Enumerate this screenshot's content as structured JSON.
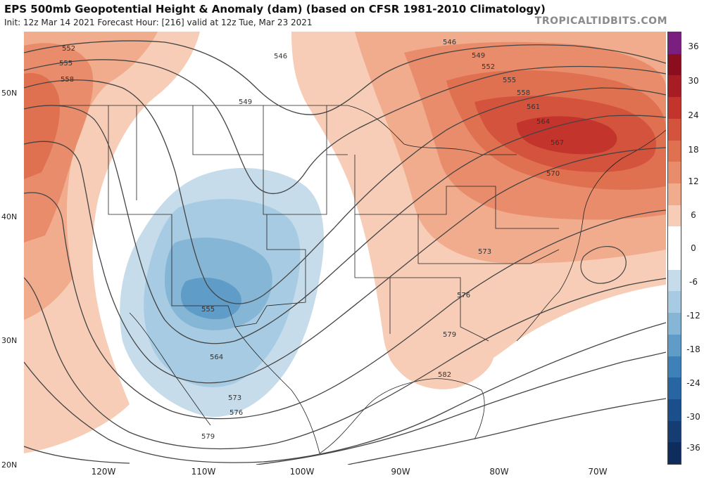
{
  "header": {
    "title": "EPS 500mb Geopotential Height & Anomaly (dam) (based on CFSR 1981-2010 Climatology)",
    "subtitle": "Init: 12z Mar 14 2021   Forecast Hour: [216]   valid at 12z Tue, Mar 23 2021",
    "brand": "TROPICALTIDBITS.COM"
  },
  "axes": {
    "lat_labels": [
      "50N",
      "40N",
      "30N",
      "20N"
    ],
    "lon_labels": [
      "120W",
      "110W",
      "100W",
      "90W",
      "80W",
      "70W"
    ]
  },
  "contours": {
    "labels": [
      "552",
      "555",
      "558",
      "546",
      "546",
      "549",
      "549",
      "552",
      "555",
      "558",
      "561",
      "564",
      "567",
      "570",
      "573",
      "576",
      "579",
      "582",
      "555",
      "564",
      "573",
      "576",
      "579"
    ]
  },
  "colorbar": {
    "labels": [
      "36",
      "30",
      "24",
      "18",
      "12",
      "6",
      "0",
      "-6",
      "-12",
      "-18",
      "-24",
      "-30",
      "-36"
    ],
    "colors": [
      "#7a1f7f",
      "#8b0e1e",
      "#a81d24",
      "#c2342c",
      "#d4533d",
      "#e07150",
      "#e98c6c",
      "#f1ab8d",
      "#f7cdb7",
      "#ffffff",
      "#ffffff",
      "#c6dceb",
      "#a6cbe2",
      "#85b6d6",
      "#5f9cc8",
      "#3e80b8",
      "#2866a3",
      "#1b4f8c",
      "#153d73",
      "#0e2c5c"
    ]
  },
  "palette": {
    "warm1": "#f7cdb7",
    "warm2": "#f1ab8d",
    "warm3": "#e98c6c",
    "warm4": "#e07150",
    "warm5": "#d4533d",
    "warm6": "#c2342c",
    "cool1": "#c6dceb",
    "cool2": "#a6cbe2",
    "cool3": "#85b6d6",
    "cool4": "#5f9cc8"
  }
}
